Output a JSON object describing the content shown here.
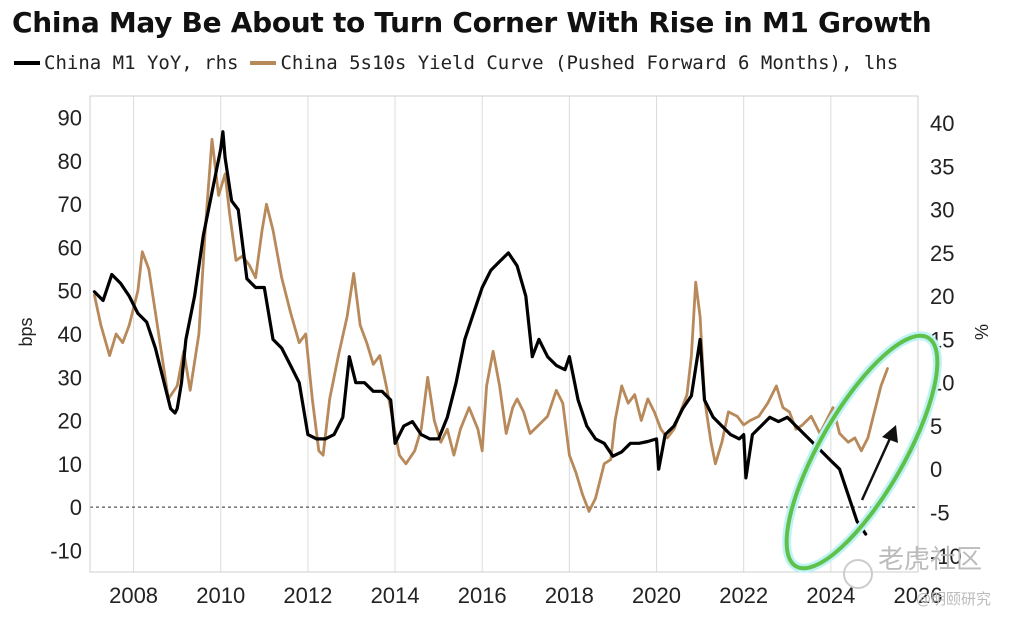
{
  "chart_data": {
    "type": "line",
    "title": "China May Be About to Turn Corner With Rise in M1 Growth",
    "ylabel_left": "bps",
    "ylabel_right": "%",
    "y_left_lim": [
      -15,
      95
    ],
    "y_right_lim": [
      -11.875,
      43.125
    ],
    "y_left_ticks": [
      "90",
      "80",
      "70",
      "60",
      "50",
      "40",
      "30",
      "20",
      "10",
      "0",
      "-10"
    ],
    "y_right_ticks": [
      "40",
      "35",
      "30",
      "25",
      "20",
      "15",
      "10",
      "5",
      "0",
      "-5",
      "-10"
    ],
    "x_lim": [
      2007.0,
      2026.0
    ],
    "x_ticks": [
      "2008",
      "2010",
      "2012",
      "2014",
      "2016",
      "2018",
      "2020",
      "2022",
      "2024",
      "2026"
    ],
    "grid": "vertical",
    "legend_position": "top",
    "series": [
      {
        "name": "China M1 YoY, rhs",
        "axis": "right",
        "color": "#000000",
        "points": [
          [
            2007.1,
            20.5
          ],
          [
            2007.3,
            19.5
          ],
          [
            2007.5,
            22.5
          ],
          [
            2007.7,
            21.5
          ],
          [
            2007.9,
            20
          ],
          [
            2008.1,
            18
          ],
          [
            2008.3,
            17
          ],
          [
            2008.5,
            14
          ],
          [
            2008.7,
            10
          ],
          [
            2008.85,
            7
          ],
          [
            2008.95,
            6.5
          ],
          [
            2009.0,
            7
          ],
          [
            2009.1,
            10
          ],
          [
            2009.2,
            15
          ],
          [
            2009.4,
            20
          ],
          [
            2009.6,
            27
          ],
          [
            2009.8,
            32
          ],
          [
            2010.0,
            37
          ],
          [
            2010.05,
            39
          ],
          [
            2010.1,
            36
          ],
          [
            2010.25,
            31
          ],
          [
            2010.4,
            30
          ],
          [
            2010.6,
            22
          ],
          [
            2010.8,
            21
          ],
          [
            2011.0,
            21
          ],
          [
            2011.2,
            15
          ],
          [
            2011.4,
            14
          ],
          [
            2011.6,
            12
          ],
          [
            2011.8,
            10
          ],
          [
            2012.0,
            4
          ],
          [
            2012.2,
            3.5
          ],
          [
            2012.4,
            3.5
          ],
          [
            2012.6,
            4
          ],
          [
            2012.8,
            6
          ],
          [
            2012.95,
            13
          ],
          [
            2013.1,
            10
          ],
          [
            2013.3,
            10
          ],
          [
            2013.5,
            9
          ],
          [
            2013.7,
            9
          ],
          [
            2013.9,
            8
          ],
          [
            2014.0,
            3
          ],
          [
            2014.2,
            5
          ],
          [
            2014.4,
            5.5
          ],
          [
            2014.6,
            4
          ],
          [
            2014.8,
            3.5
          ],
          [
            2015.0,
            3.5
          ],
          [
            2015.2,
            6
          ],
          [
            2015.4,
            10
          ],
          [
            2015.6,
            15
          ],
          [
            2015.8,
            18
          ],
          [
            2016.0,
            21
          ],
          [
            2016.2,
            23
          ],
          [
            2016.4,
            24
          ],
          [
            2016.6,
            25
          ],
          [
            2016.8,
            23.5
          ],
          [
            2017.0,
            20
          ],
          [
            2017.15,
            13
          ],
          [
            2017.3,
            15
          ],
          [
            2017.5,
            13
          ],
          [
            2017.7,
            12
          ],
          [
            2017.9,
            11.5
          ],
          [
            2018.0,
            13
          ],
          [
            2018.2,
            8
          ],
          [
            2018.4,
            5
          ],
          [
            2018.6,
            3.5
          ],
          [
            2018.8,
            3
          ],
          [
            2019.0,
            1.5
          ],
          [
            2019.2,
            2
          ],
          [
            2019.4,
            3
          ],
          [
            2019.6,
            3
          ],
          [
            2019.8,
            3.2
          ],
          [
            2020.0,
            3.5
          ],
          [
            2020.05,
            0
          ],
          [
            2020.2,
            4
          ],
          [
            2020.4,
            5
          ],
          [
            2020.6,
            7
          ],
          [
            2020.8,
            8.5
          ],
          [
            2021.0,
            15
          ],
          [
            2021.1,
            8
          ],
          [
            2021.3,
            6
          ],
          [
            2021.5,
            5
          ],
          [
            2021.7,
            4
          ],
          [
            2021.9,
            3.5
          ],
          [
            2022.0,
            4
          ],
          [
            2022.05,
            -1
          ],
          [
            2022.2,
            4
          ],
          [
            2022.4,
            5
          ],
          [
            2022.6,
            6
          ],
          [
            2022.8,
            5.5
          ],
          [
            2023.0,
            6
          ],
          [
            2023.2,
            5
          ],
          [
            2023.4,
            4
          ],
          [
            2023.6,
            3
          ],
          [
            2023.8,
            2
          ],
          [
            2024.0,
            1
          ],
          [
            2024.2,
            0
          ],
          [
            2024.4,
            -3
          ],
          [
            2024.6,
            -6
          ],
          [
            2024.8,
            -7.5
          ]
        ]
      },
      {
        "name": "China 5s10s Yield Curve (Pushed Forward 6 Months), lhs",
        "axis": "left",
        "color": "#b8895a",
        "points": [
          [
            2007.1,
            49
          ],
          [
            2007.25,
            42
          ],
          [
            2007.45,
            35
          ],
          [
            2007.6,
            40
          ],
          [
            2007.75,
            38
          ],
          [
            2007.9,
            42
          ],
          [
            2008.1,
            50
          ],
          [
            2008.2,
            59
          ],
          [
            2008.35,
            55
          ],
          [
            2008.5,
            45
          ],
          [
            2008.65,
            35
          ],
          [
            2008.8,
            25
          ],
          [
            2009.0,
            28
          ],
          [
            2009.15,
            36
          ],
          [
            2009.3,
            27
          ],
          [
            2009.5,
            40
          ],
          [
            2009.65,
            65
          ],
          [
            2009.8,
            85
          ],
          [
            2009.95,
            72
          ],
          [
            2010.1,
            77
          ],
          [
            2010.2,
            68
          ],
          [
            2010.35,
            57
          ],
          [
            2010.5,
            58
          ],
          [
            2010.65,
            56
          ],
          [
            2010.8,
            53
          ],
          [
            2010.95,
            64
          ],
          [
            2011.05,
            70
          ],
          [
            2011.2,
            64
          ],
          [
            2011.4,
            53
          ],
          [
            2011.6,
            45
          ],
          [
            2011.8,
            38
          ],
          [
            2011.95,
            40
          ],
          [
            2012.1,
            25
          ],
          [
            2012.25,
            13
          ],
          [
            2012.35,
            12
          ],
          [
            2012.5,
            25
          ],
          [
            2012.7,
            35
          ],
          [
            2012.9,
            44
          ],
          [
            2013.05,
            54
          ],
          [
            2013.2,
            42
          ],
          [
            2013.35,
            38
          ],
          [
            2013.5,
            33
          ],
          [
            2013.65,
            35
          ],
          [
            2013.8,
            28
          ],
          [
            2013.95,
            20
          ],
          [
            2014.1,
            12
          ],
          [
            2014.25,
            10
          ],
          [
            2014.45,
            13
          ],
          [
            2014.6,
            18
          ],
          [
            2014.75,
            30
          ],
          [
            2014.9,
            20
          ],
          [
            2015.05,
            15
          ],
          [
            2015.2,
            18
          ],
          [
            2015.35,
            12
          ],
          [
            2015.5,
            18
          ],
          [
            2015.7,
            23
          ],
          [
            2015.9,
            18
          ],
          [
            2016.0,
            13
          ],
          [
            2016.1,
            28
          ],
          [
            2016.25,
            36
          ],
          [
            2016.4,
            28
          ],
          [
            2016.55,
            17
          ],
          [
            2016.7,
            23
          ],
          [
            2016.8,
            25
          ],
          [
            2016.95,
            22
          ],
          [
            2017.1,
            17
          ],
          [
            2017.3,
            19
          ],
          [
            2017.5,
            21
          ],
          [
            2017.7,
            27
          ],
          [
            2017.85,
            24
          ],
          [
            2018.0,
            12
          ],
          [
            2018.15,
            8
          ],
          [
            2018.3,
            3
          ],
          [
            2018.45,
            -1
          ],
          [
            2018.6,
            2
          ],
          [
            2018.8,
            10
          ],
          [
            2018.95,
            11
          ],
          [
            2019.05,
            20
          ],
          [
            2019.2,
            28
          ],
          [
            2019.35,
            24
          ],
          [
            2019.5,
            26
          ],
          [
            2019.65,
            20
          ],
          [
            2019.8,
            25
          ],
          [
            2019.95,
            22
          ],
          [
            2020.1,
            18
          ],
          [
            2020.25,
            16
          ],
          [
            2020.4,
            18
          ],
          [
            2020.55,
            22
          ],
          [
            2020.7,
            26
          ],
          [
            2020.8,
            35
          ],
          [
            2020.9,
            52
          ],
          [
            2021.0,
            44
          ],
          [
            2021.1,
            25
          ],
          [
            2021.25,
            15
          ],
          [
            2021.35,
            10
          ],
          [
            2021.5,
            15
          ],
          [
            2021.65,
            22
          ],
          [
            2021.85,
            21
          ],
          [
            2022.0,
            19
          ],
          [
            2022.15,
            20
          ],
          [
            2022.35,
            21
          ],
          [
            2022.55,
            24
          ],
          [
            2022.75,
            28
          ],
          [
            2022.9,
            23
          ],
          [
            2023.05,
            22
          ],
          [
            2023.2,
            18
          ],
          [
            2023.35,
            19
          ],
          [
            2023.55,
            21
          ],
          [
            2023.75,
            17
          ],
          [
            2023.9,
            20
          ],
          [
            2024.05,
            23
          ],
          [
            2024.2,
            17
          ],
          [
            2024.4,
            15
          ],
          [
            2024.55,
            16
          ],
          [
            2024.7,
            13
          ],
          [
            2024.85,
            16
          ],
          [
            2025.0,
            22
          ],
          [
            2025.15,
            28
          ],
          [
            2025.3,
            32
          ]
        ]
      }
    ]
  },
  "watermark": {
    "line1": "老虎社区",
    "line2": "@明颐研究"
  }
}
